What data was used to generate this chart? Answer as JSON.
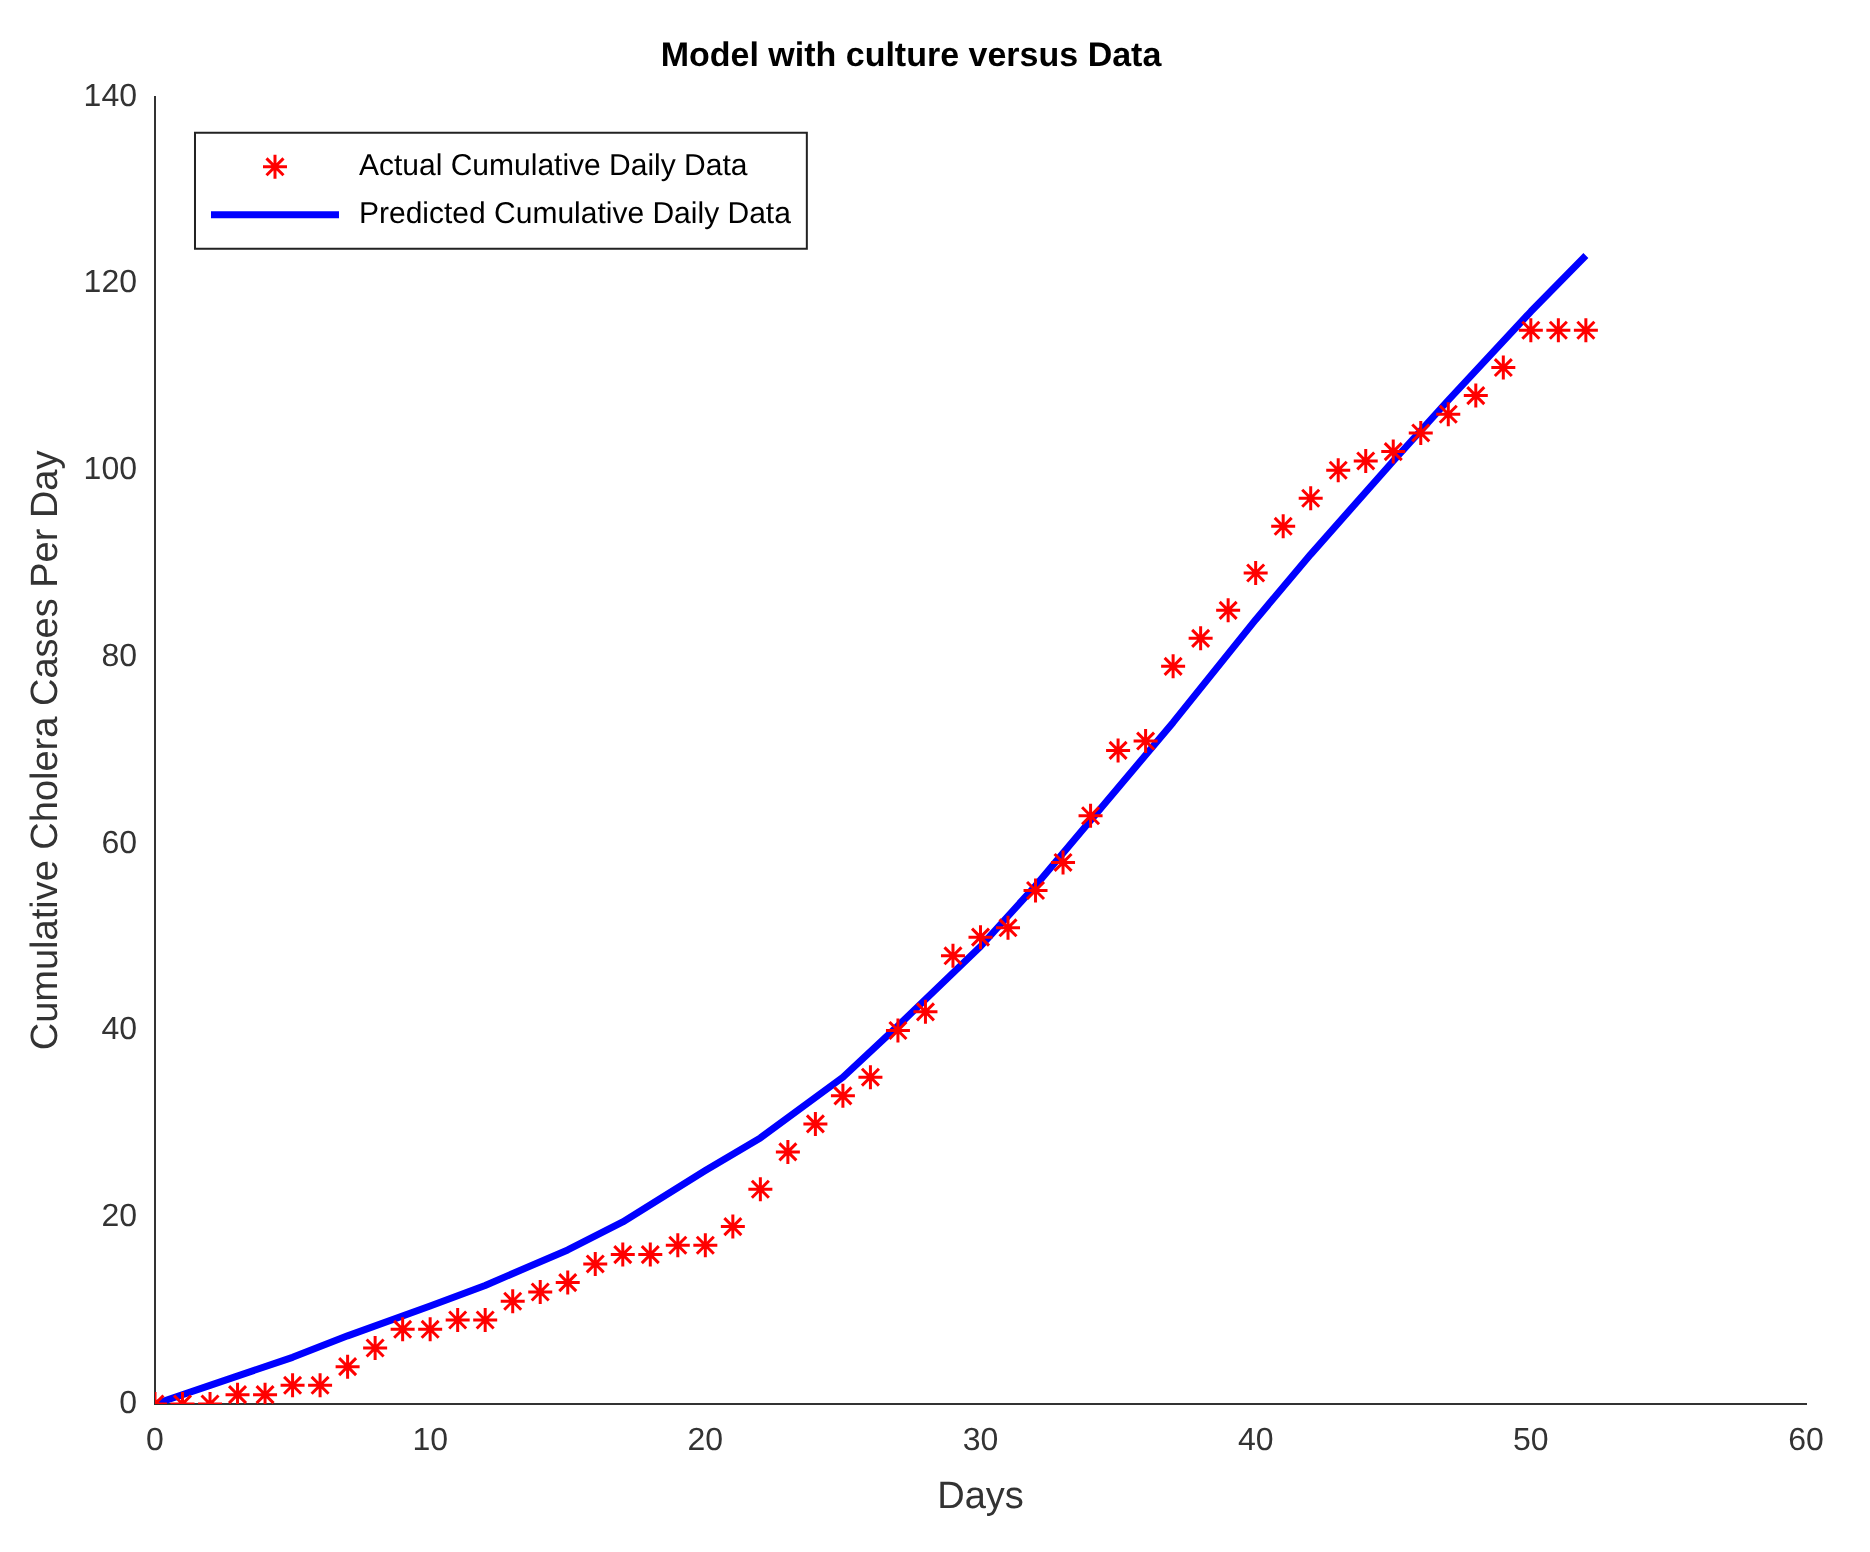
{
  "chart_data": {
    "type": "scatter",
    "title": "Model with culture versus Data",
    "xlabel": "Days",
    "ylabel": "Cumulative Cholera Cases Per Day",
    "xlim": [
      0,
      60
    ],
    "xticks": [
      0,
      10,
      20,
      30,
      40,
      50,
      60
    ],
    "ylim": [
      0,
      140
    ],
    "yticks": [
      0,
      20,
      40,
      60,
      80,
      100,
      120,
      140
    ],
    "grid": false,
    "legend": "top left",
    "series": [
      {
        "name": "Actual Cumulative Daily Data",
        "type": "scatter",
        "marker": "cross",
        "color": "#ff0000",
        "x": [
          0,
          1,
          2,
          3,
          4,
          5,
          6,
          7,
          8,
          9,
          10,
          11,
          12,
          13,
          14,
          15,
          16,
          17,
          18,
          19,
          20,
          21,
          22,
          23,
          24,
          25,
          26,
          27,
          28,
          29,
          30,
          31,
          32,
          33,
          34,
          35,
          36,
          37,
          38,
          39,
          40,
          41,
          42,
          43,
          44,
          45,
          46,
          47,
          48,
          49,
          50,
          51,
          52
        ],
        "values": [
          0,
          0,
          0,
          1,
          1,
          2,
          2,
          4,
          6,
          8,
          8,
          9,
          9,
          11,
          12,
          13,
          15,
          16,
          16,
          17,
          17,
          19,
          23,
          27,
          30,
          33,
          35,
          40,
          42,
          48,
          50,
          51,
          55,
          58,
          63,
          70,
          71,
          79,
          82,
          85,
          89,
          94,
          97,
          100,
          101,
          102,
          104,
          106,
          108,
          111,
          115,
          115,
          115
        ]
      },
      {
        "name": "Predicted Cumulative Daily Data",
        "type": "line",
        "marker": "none",
        "line_style": "solid",
        "color": "#0000ff",
        "x": [
          0,
          2,
          5,
          7,
          10,
          12,
          15,
          17,
          20,
          22,
          25,
          27,
          30,
          32,
          35,
          37,
          40,
          42,
          45,
          47,
          50,
          52
        ],
        "values": [
          0,
          2,
          5,
          7.3,
          10.5,
          12.7,
          16.5,
          19.5,
          25,
          28.5,
          35,
          40.5,
          49,
          55.5,
          66,
          73,
          84,
          91,
          101,
          107.5,
          117,
          123
        ]
      }
    ]
  }
}
